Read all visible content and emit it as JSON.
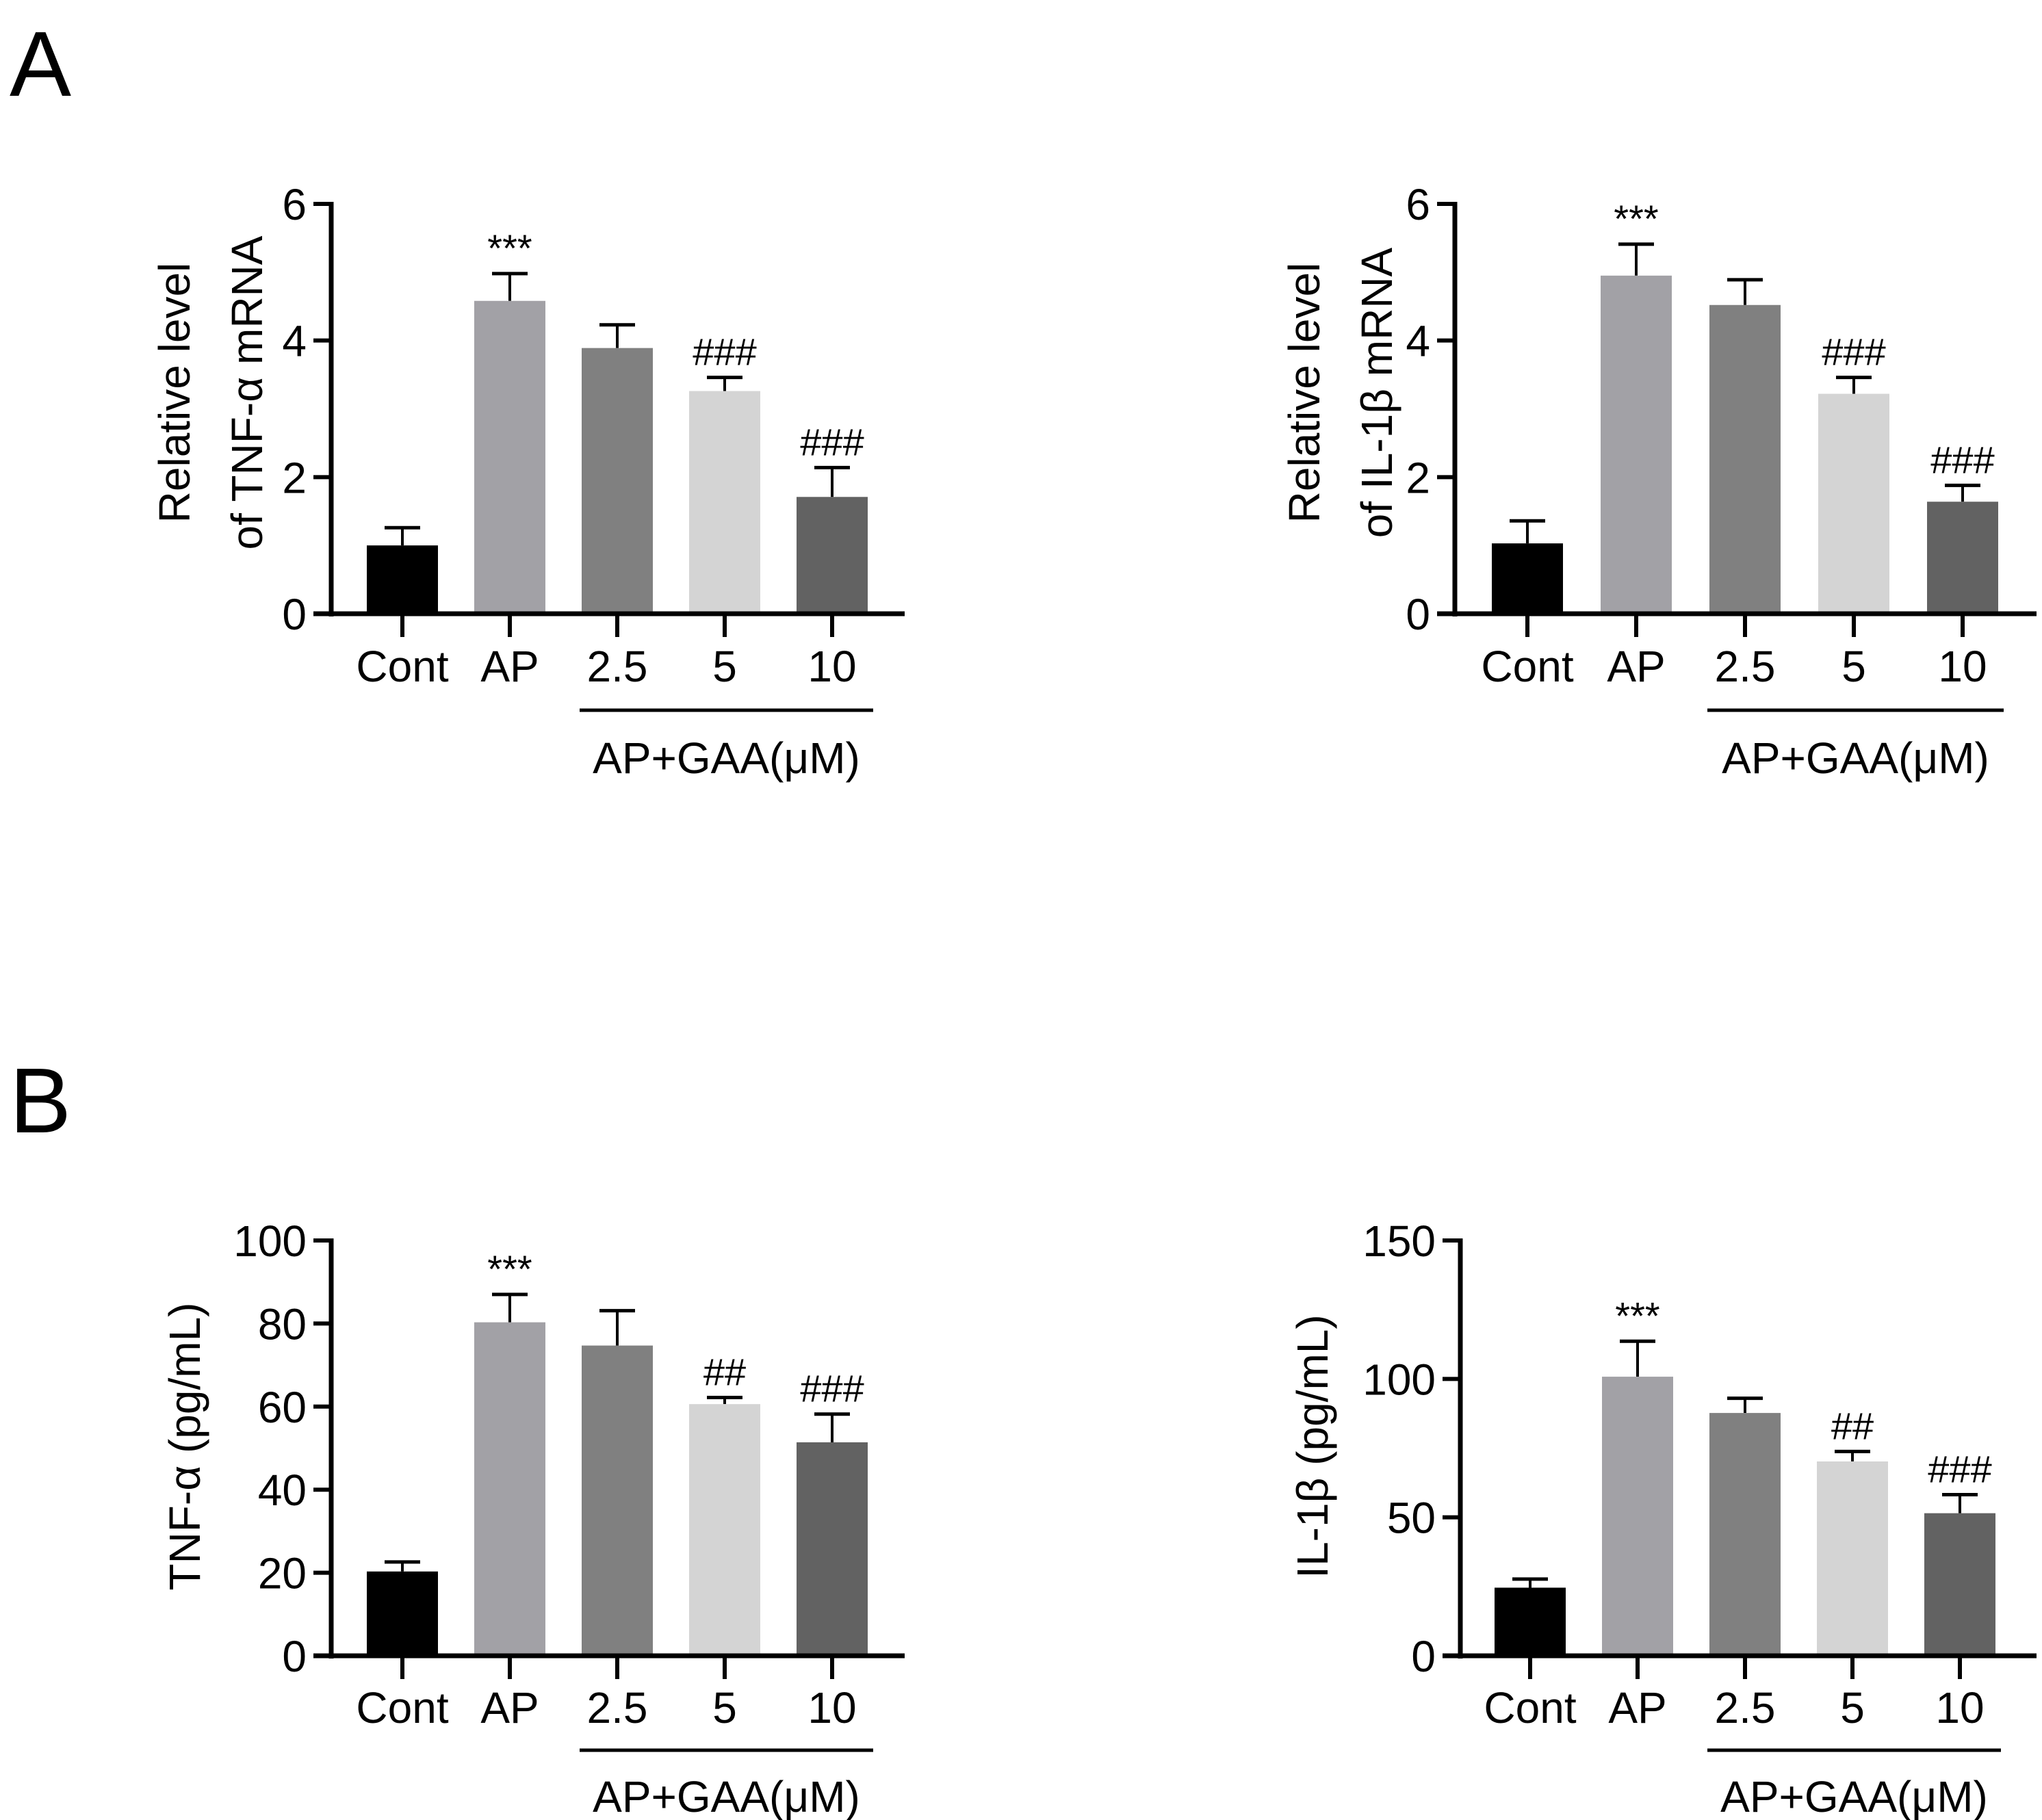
{
  "panel_labels": [
    "A",
    "B"
  ],
  "colors": {
    "bars": [
      "#000000",
      "#a2a1a6",
      "#808080",
      "#d4d4d4",
      "#626262"
    ],
    "axis": "#000000"
  },
  "chart_data": [
    {
      "type": "bar",
      "panel": "A",
      "title": "",
      "ylabel_lines": [
        "Relative level",
        "of TNF-α mRNA"
      ],
      "xlabel": "AP+GAA(μM)",
      "categories": [
        "Cont",
        "AP",
        "2.5",
        "5",
        "10"
      ],
      "bracket_categories": [
        "2.5",
        "5",
        "10"
      ],
      "values": [
        1.0,
        4.58,
        3.89,
        3.26,
        1.71
      ],
      "error_upper": [
        1.26,
        4.98,
        4.23,
        3.46,
        2.14
      ],
      "annotations": [
        "",
        "***",
        "",
        "###",
        "###"
      ],
      "ylim": [
        0,
        6
      ],
      "yticks": [
        "0",
        "2",
        "4",
        "6"
      ],
      "grid": false
    },
    {
      "type": "bar",
      "panel": "A",
      "title": "",
      "ylabel_lines": [
        "Relative level",
        "of IL-1β mRNA"
      ],
      "xlabel": "AP+GAA(μM)",
      "categories": [
        "Cont",
        "AP",
        "2.5",
        "5",
        "10"
      ],
      "bracket_categories": [
        "2.5",
        "5",
        "10"
      ],
      "values": [
        1.03,
        4.95,
        4.52,
        3.22,
        1.64
      ],
      "error_upper": [
        1.36,
        5.41,
        4.89,
        3.46,
        1.88
      ],
      "annotations": [
        "",
        "***",
        "",
        "###",
        "###"
      ],
      "ylim": [
        0,
        6
      ],
      "yticks": [
        "0",
        "2",
        "4",
        "6"
      ],
      "grid": false
    },
    {
      "type": "bar",
      "panel": "B",
      "title": "",
      "ylabel_lines": [
        "TNF-α (pg/mL)"
      ],
      "xlabel": "AP+GAA(μM)",
      "categories": [
        "Cont",
        "AP",
        "2.5",
        "5",
        "10"
      ],
      "bracket_categories": [
        "2.5",
        "5",
        "10"
      ],
      "values": [
        20.3,
        80.3,
        74.7,
        60.6,
        51.4
      ],
      "error_upper": [
        22.6,
        87.0,
        83.1,
        62.2,
        58.2
      ],
      "annotations": [
        "",
        "***",
        "",
        "##",
        "###"
      ],
      "ylim": [
        0,
        100
      ],
      "yticks": [
        "0",
        "20",
        "40",
        "60",
        "80",
        "100"
      ],
      "grid": false
    },
    {
      "type": "bar",
      "panel": "B",
      "title": "",
      "ylabel_lines": [
        "IL-1β (pg/mL)"
      ],
      "xlabel": "AP+GAA(μM)",
      "categories": [
        "Cont",
        "AP",
        "2.5",
        "5",
        "10"
      ],
      "bracket_categories": [
        "2.5",
        "5",
        "10"
      ],
      "values": [
        24.6,
        100.8,
        87.7,
        70.2,
        51.5
      ],
      "error_upper": [
        27.7,
        113.6,
        93.0,
        73.8,
        58.2
      ],
      "annotations": [
        "",
        "***",
        "",
        "##",
        "###"
      ],
      "ylim": [
        0,
        150
      ],
      "yticks": [
        "0",
        "50",
        "100",
        "150"
      ],
      "grid": false
    }
  ]
}
